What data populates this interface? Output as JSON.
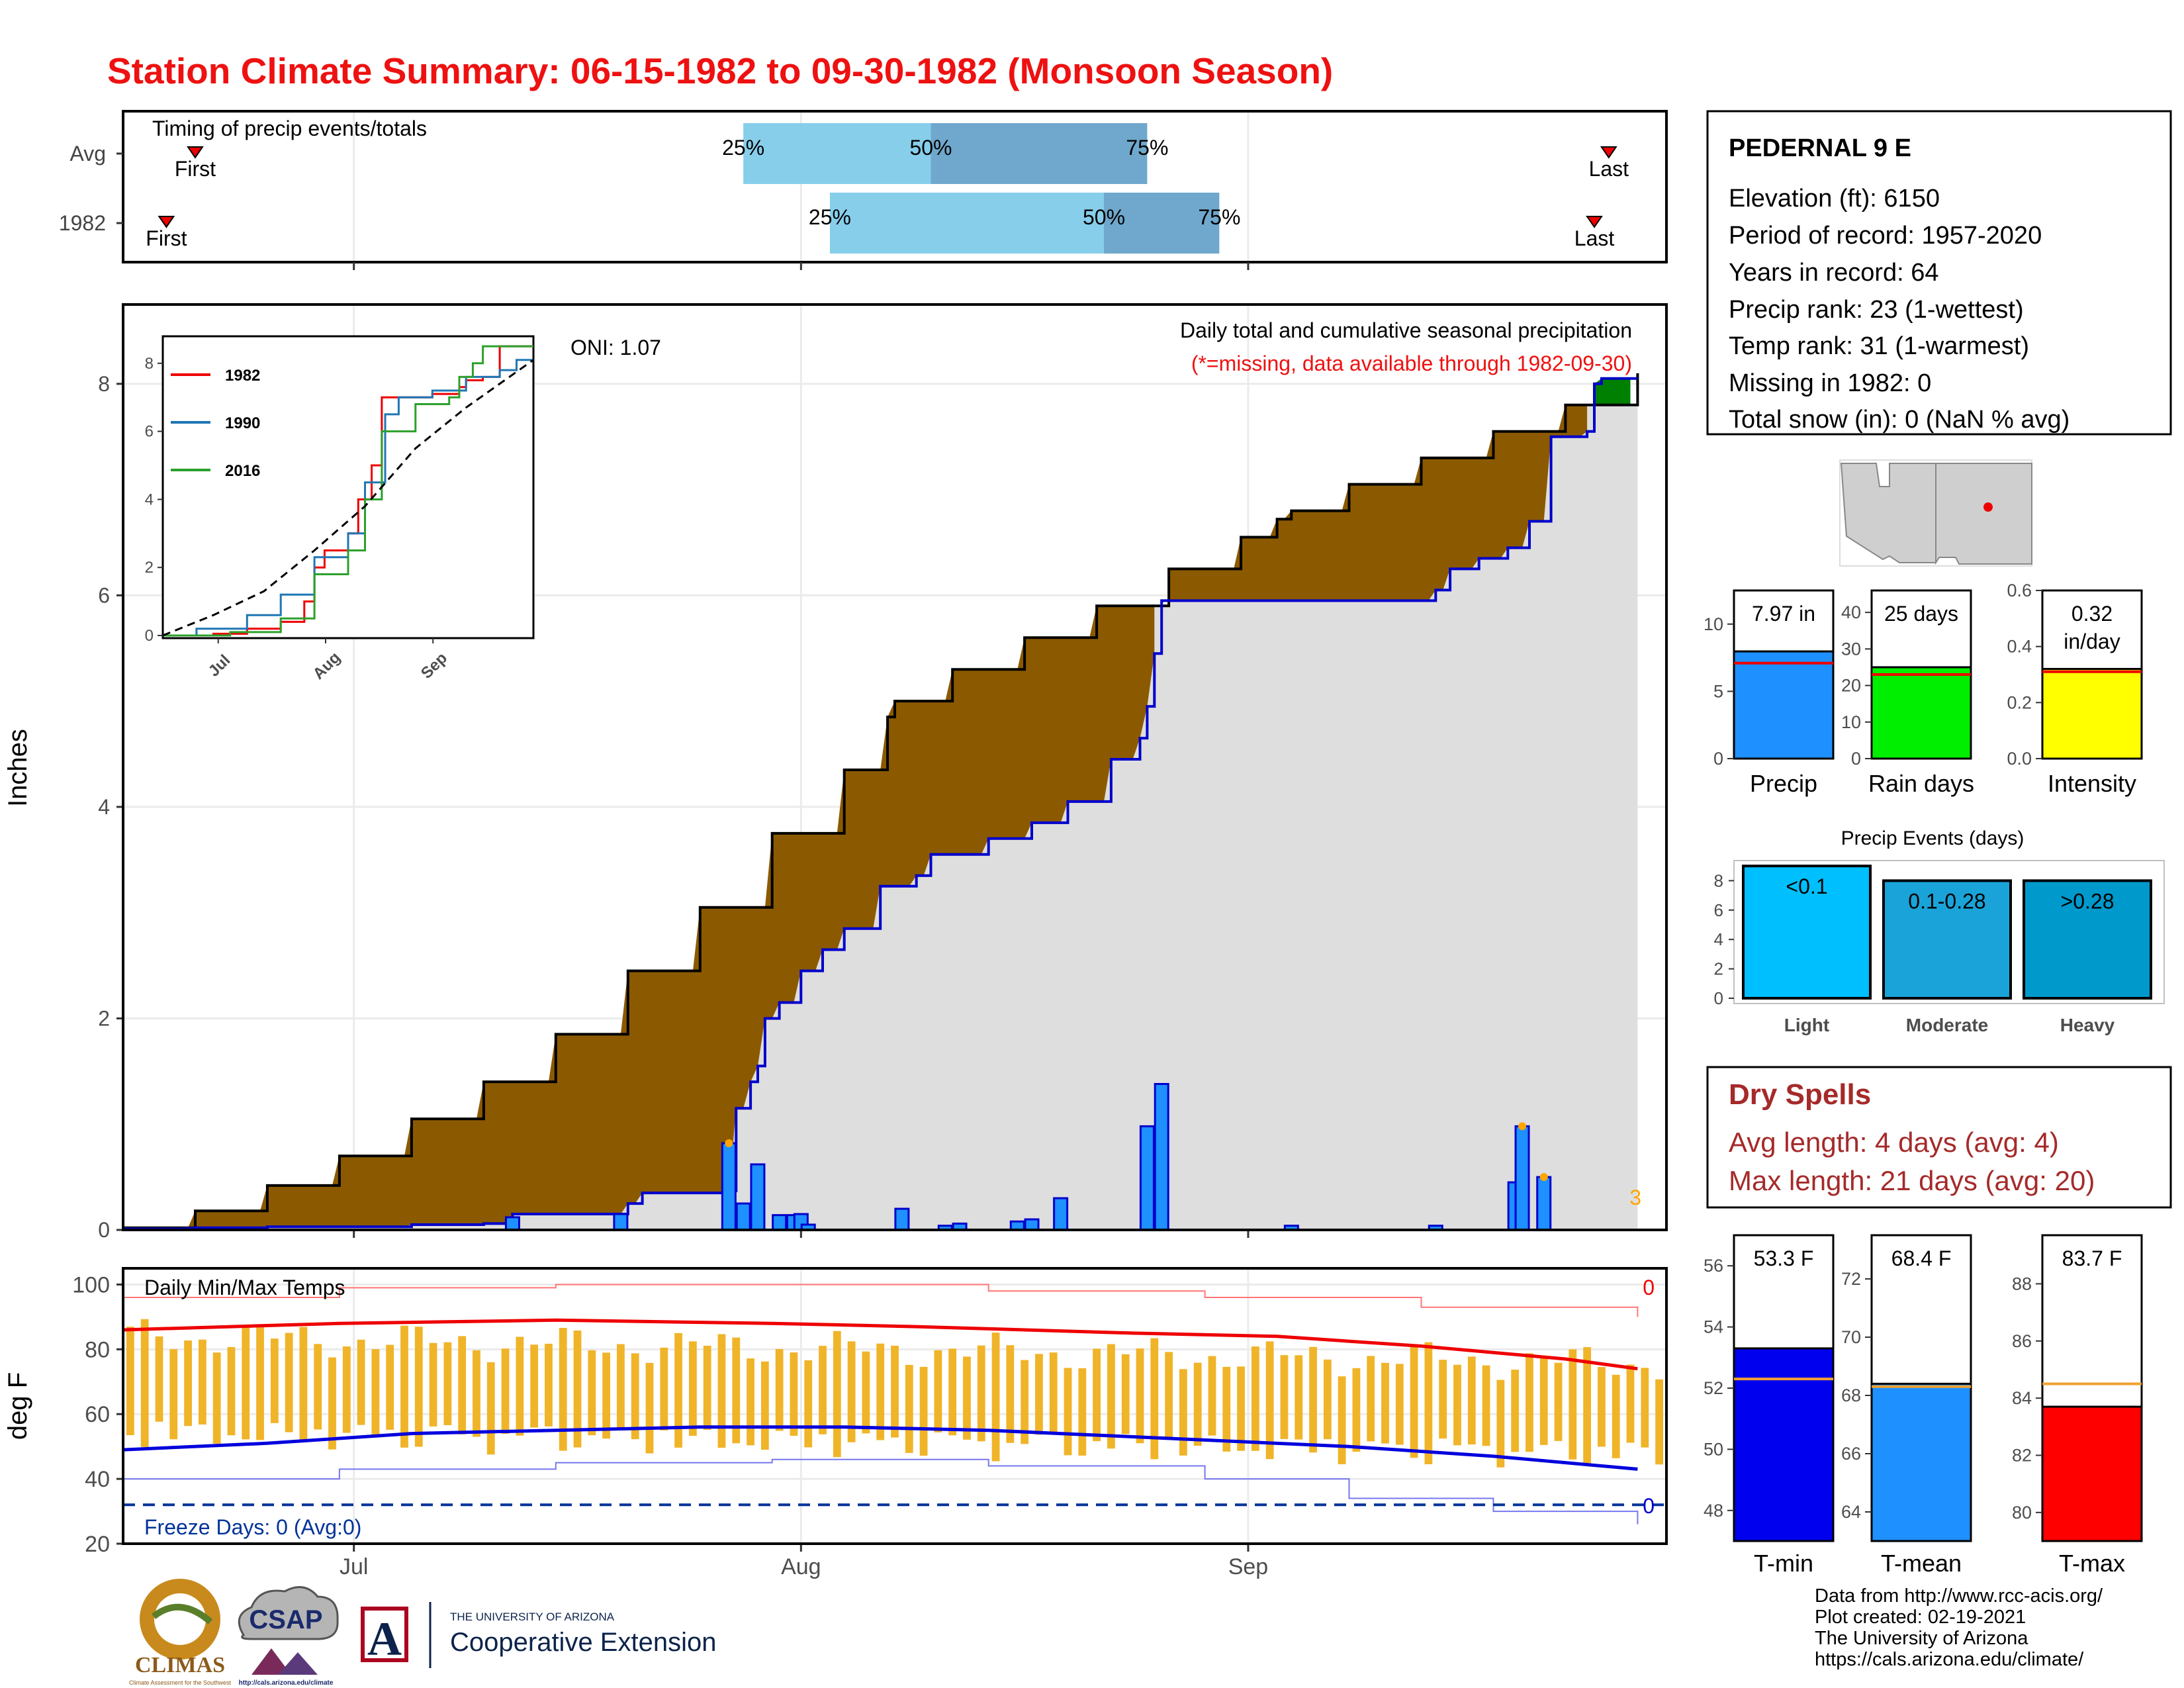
{
  "header": {
    "title": "Station Climate Summary: 06-15-1982 to 09-30-1982 (Monsoon Season)",
    "title_color": "#ee1111"
  },
  "colors": {
    "avg_cum_fill": "#dedede",
    "deficit_fill": "#8b5a00",
    "surplus_fill": "#008000",
    "obs_line": "#0000cc",
    "daily_bar": "#1e90ff",
    "temp_bar": "#f0b429",
    "tmax_line": "#ee0000",
    "tmin_line": "#0000dd",
    "quartile_light": "#87ceeb",
    "quartile_dark": "#6fa8cc"
  },
  "chart_data": [
    {
      "id": "timing",
      "type": "bar",
      "title": "Timing of precip events/totals",
      "categories": [
        "Avg",
        "1982"
      ],
      "x_axis_ticks": [
        "Jul",
        "Aug",
        "Sep"
      ],
      "rows": [
        {
          "name": "Avg",
          "first": "06-20",
          "q25": "07-28",
          "q50": "08-10",
          "q75": "08-25",
          "last": "09-26",
          "labels": [
            "First",
            "25%",
            "50%",
            "75%",
            "Last"
          ]
        },
        {
          "name": "1982",
          "first": "06-18",
          "q25": "08-03",
          "q50": "08-22",
          "q75": "08-30",
          "last": "09-25",
          "labels": [
            "First",
            "25%",
            "50%",
            "75%",
            "Last"
          ]
        }
      ]
    },
    {
      "id": "precip",
      "type": "area",
      "title": "Daily total and cumulative seasonal precipitation",
      "subtitle": "(*=missing, data available through 1982-09-30)",
      "annotation": "ONI: 1.07",
      "ylabel": "Inches",
      "ylim": [
        0,
        8.75
      ],
      "yticks": [
        0,
        2,
        4,
        6,
        8
      ],
      "x_ticks": [
        "Jul",
        "Aug",
        "Sep"
      ],
      "corner_count": "3",
      "avg_cumulative_points": [
        [
          0,
          0.02
        ],
        [
          10,
          0.18
        ],
        [
          20,
          0.42
        ],
        [
          30,
          0.7
        ],
        [
          40,
          1.05
        ],
        [
          50,
          1.4
        ],
        [
          60,
          1.85
        ],
        [
          70,
          2.45
        ],
        [
          80,
          3.05
        ],
        [
          90,
          3.75
        ],
        [
          100,
          4.35
        ],
        [
          106,
          4.85
        ],
        [
          107,
          5.0
        ],
        [
          115,
          5.3
        ],
        [
          125,
          5.6
        ],
        [
          135,
          5.9
        ],
        [
          145,
          6.25
        ],
        [
          155,
          6.55
        ],
        [
          160,
          6.72
        ],
        [
          162,
          6.8
        ],
        [
          170,
          7.05
        ],
        [
          180,
          7.3
        ],
        [
          190,
          7.55
        ],
        [
          200,
          7.8
        ],
        [
          210,
          8.1
        ]
      ],
      "obs_cumulative_points": [
        [
          0,
          0.01
        ],
        [
          10,
          0.02
        ],
        [
          20,
          0.03
        ],
        [
          40,
          0.05
        ],
        [
          50,
          0.06
        ],
        [
          54,
          0.15
        ],
        [
          70,
          0.25
        ],
        [
          72,
          0.35
        ],
        [
          84,
          0.37
        ],
        [
          85,
          1.15
        ],
        [
          87,
          1.4
        ],
        [
          88,
          1.55
        ],
        [
          89,
          2.0
        ],
        [
          91,
          2.15
        ],
        [
          94,
          2.45
        ],
        [
          97,
          2.65
        ],
        [
          100,
          2.85
        ],
        [
          105,
          3.25
        ],
        [
          110,
          3.35
        ],
        [
          112,
          3.55
        ],
        [
          120,
          3.7
        ],
        [
          126,
          3.85
        ],
        [
          131,
          4.05
        ],
        [
          137,
          4.45
        ],
        [
          141,
          4.65
        ],
        [
          142,
          4.95
        ],
        [
          143,
          5.45
        ],
        [
          144,
          5.95
        ],
        [
          150,
          5.95
        ],
        [
          170,
          5.95
        ],
        [
          182,
          6.05
        ],
        [
          184,
          6.25
        ],
        [
          188,
          6.35
        ],
        [
          192,
          6.45
        ],
        [
          195,
          6.7
        ],
        [
          198,
          7.5
        ],
        [
          203,
          7.55
        ],
        [
          204,
          8.0
        ],
        [
          205,
          8.05
        ],
        [
          210,
          8.05
        ]
      ],
      "daily_bars": [
        [
          10,
          0.02
        ],
        [
          54,
          0.12
        ],
        [
          69,
          0.15
        ],
        [
          84,
          0.82
        ],
        [
          86,
          0.25
        ],
        [
          88,
          0.62
        ],
        [
          91,
          0.14
        ],
        [
          93,
          0.14
        ],
        [
          94,
          0.15
        ],
        [
          95,
          0.05
        ],
        [
          108,
          0.2
        ],
        [
          114,
          0.04
        ],
        [
          116,
          0.06
        ],
        [
          124,
          0.08
        ],
        [
          126,
          0.1
        ],
        [
          130,
          0.3
        ],
        [
          142,
          0.98
        ],
        [
          144,
          1.38
        ],
        [
          162,
          0.04
        ],
        [
          182,
          0.04
        ],
        [
          193,
          0.45
        ],
        [
          194,
          0.98
        ],
        [
          197,
          0.5
        ]
      ],
      "inset": {
        "type": "line",
        "yticks": [
          0,
          2,
          4,
          6,
          8
        ],
        "x_ticks": [
          "Jul",
          "Aug",
          "Sep"
        ],
        "series": [
          {
            "name": "1982",
            "color": "#ee0000",
            "points": [
              [
                0,
                0
              ],
              [
                15,
                0.05
              ],
              [
                25,
                0.2
              ],
              [
                35,
                0.4
              ],
              [
                42,
                1.0
              ],
              [
                45,
                2.0
              ],
              [
                48,
                2.5
              ],
              [
                55,
                3.0
              ],
              [
                58,
                4.0
              ],
              [
                62,
                5.0
              ],
              [
                65,
                7.0
              ],
              [
                70,
                7.0
              ],
              [
                80,
                7.1
              ],
              [
                88,
                7.3
              ],
              [
                90,
                7.5
              ],
              [
                95,
                7.6
              ],
              [
                100,
                8.5
              ],
              [
                110,
                8.5
              ]
            ]
          },
          {
            "name": "1990",
            "color": "#1f77b4",
            "points": [
              [
                0,
                0
              ],
              [
                10,
                0.2
              ],
              [
                25,
                0.6
              ],
              [
                35,
                1.2
              ],
              [
                45,
                2.3
              ],
              [
                55,
                3.0
              ],
              [
                60,
                4.5
              ],
              [
                66,
                6.5
              ],
              [
                70,
                7.0
              ],
              [
                80,
                7.2
              ],
              [
                90,
                7.6
              ],
              [
                100,
                7.8
              ],
              [
                105,
                8.1
              ],
              [
                110,
                8.1
              ]
            ]
          },
          {
            "name": "2016",
            "color": "#2ca02c",
            "points": [
              [
                0,
                0
              ],
              [
                20,
                0.1
              ],
              [
                35,
                0.5
              ],
              [
                45,
                1.8
              ],
              [
                55,
                2.5
              ],
              [
                60,
                4.0
              ],
              [
                65,
                6.0
              ],
              [
                75,
                6.8
              ],
              [
                85,
                7.0
              ],
              [
                88,
                7.6
              ],
              [
                92,
                8.0
              ],
              [
                95,
                8.5
              ],
              [
                110,
                8.5
              ]
            ]
          }
        ],
        "avg_points": [
          [
            0,
            0
          ],
          [
            15,
            0.6
          ],
          [
            30,
            1.3
          ],
          [
            45,
            2.5
          ],
          [
            60,
            3.8
          ],
          [
            75,
            5.5
          ],
          [
            90,
            6.7
          ],
          [
            110,
            8.1
          ]
        ]
      }
    },
    {
      "id": "temps",
      "type": "bar",
      "title": "Daily Min/Max Temps",
      "ylabel": "deg F",
      "ylim": [
        20,
        105
      ],
      "yticks": [
        20,
        40,
        60,
        80,
        100
      ],
      "x_ticks": [
        "Jul",
        "Aug",
        "Sep"
      ],
      "freeze_label": "Freeze Days: 0 (Avg:0)",
      "freeze_line": 32,
      "top_count": "0",
      "bottom_count": "0",
      "tmax_avg_points": [
        [
          0,
          86
        ],
        [
          30,
          88
        ],
        [
          60,
          89
        ],
        [
          90,
          88
        ],
        [
          110,
          87
        ],
        [
          140,
          85
        ],
        [
          160,
          84
        ],
        [
          180,
          81
        ],
        [
          200,
          77
        ],
        [
          210,
          74
        ]
      ],
      "tmin_avg_points": [
        [
          0,
          49
        ],
        [
          20,
          51
        ],
        [
          40,
          54
        ],
        [
          60,
          55
        ],
        [
          80,
          56
        ],
        [
          100,
          56
        ],
        [
          120,
          55
        ],
        [
          150,
          52
        ],
        [
          170,
          50
        ],
        [
          190,
          47
        ],
        [
          210,
          43
        ]
      ],
      "tmax_record_points": [
        [
          0,
          96
        ],
        [
          30,
          99
        ],
        [
          60,
          100
        ],
        [
          90,
          100
        ],
        [
          120,
          98
        ],
        [
          150,
          96
        ],
        [
          180,
          93
        ],
        [
          210,
          90
        ]
      ],
      "tmin_record_points": [
        [
          0,
          40
        ],
        [
          30,
          43
        ],
        [
          60,
          45
        ],
        [
          90,
          46
        ],
        [
          120,
          44
        ],
        [
          150,
          40
        ],
        [
          170,
          34
        ],
        [
          190,
          30
        ],
        [
          210,
          26
        ]
      ]
    },
    {
      "id": "anomaly-precip",
      "type": "bar",
      "categories": [
        "Precip",
        "Rain days",
        "Intensity"
      ],
      "panels": [
        {
          "name": "Precip",
          "value": 7.97,
          "avg": 7.1,
          "ylim": [
            0,
            12.5
          ],
          "yticks": [
            0,
            5,
            10
          ],
          "label": "7.97 in",
          "color": "#1e90ff"
        },
        {
          "name": "Rain days",
          "value": 25,
          "avg": 23,
          "ylim": [
            0,
            46
          ],
          "yticks": [
            0,
            10,
            20,
            30,
            40
          ],
          "label": "25 days",
          "color": "#00ee00"
        },
        {
          "name": "Intensity",
          "value": 0.32,
          "avg": 0.31,
          "ylim": [
            0,
            0.6
          ],
          "yticks": [
            "0.0",
            "0.2",
            "0.4",
            "0.6"
          ],
          "label": "0.32 in/day",
          "color": "#ffff00"
        }
      ]
    },
    {
      "id": "precip-events",
      "type": "bar",
      "title": "Precip Events (days)",
      "categories": [
        "Light",
        "Moderate",
        "Heavy"
      ],
      "values": [
        9,
        8,
        8
      ],
      "bar_labels": [
        "<0.1",
        "0.1-0.28",
        ">0.28"
      ],
      "yticks": [
        0,
        2,
        4,
        6,
        8
      ],
      "colors": [
        "#00bfff",
        "#1aa3d9",
        "#0099cc"
      ]
    },
    {
      "id": "temp-bars",
      "type": "bar",
      "categories": [
        "T-min",
        "T-mean",
        "T-max"
      ],
      "panels": [
        {
          "name": "T-min",
          "value": 53.3,
          "avg": 52.3,
          "ylim": [
            47,
            57
          ],
          "yticks": [
            48,
            50,
            52,
            54,
            56
          ],
          "label": "53.3 F",
          "color": "#0000ee"
        },
        {
          "name": "T-mean",
          "value": 68.4,
          "avg": 68.3,
          "ylim": [
            63,
            73.5
          ],
          "yticks": [
            64,
            66,
            68,
            70,
            72
          ],
          "label": "68.4 F",
          "color": "#1e90ff"
        },
        {
          "name": "T-max",
          "value": 83.7,
          "avg": 84.5,
          "ylim": [
            79,
            89.7
          ],
          "yticks": [
            80,
            82,
            84,
            86,
            88
          ],
          "label": "83.7 F",
          "color": "#ff0000"
        }
      ]
    }
  ],
  "station": {
    "name": "PEDERNAL 9 E",
    "lines": [
      "Elevation (ft): 6150",
      "Period of record: 1957-2020",
      "Years in record: 64",
      "Precip rank: 23 (1-wettest)",
      "Temp rank: 31 (1-warmest)",
      "Missing in 1982: 0",
      "Total snow (in): 0 (NaN % avg)"
    ]
  },
  "dry_spells": {
    "title": "Dry Spells",
    "avg": "Avg length: 4 days (avg: 4)",
    "max": "Max length: 21 days (avg: 20)",
    "color": "#a52a2a"
  },
  "footer": {
    "credits": [
      "Data from http://www.rcc-acis.org/",
      "Plot created: 02-19-2021",
      "The University of Arizona",
      "https://cals.arizona.edu/climate/"
    ],
    "logo_climas": "CLIMAS",
    "logo_climas_sub": "Climate Assessment for the Southwest",
    "logo_csap": "CSAP",
    "logo_csap_url": "http://cals.arizona.edu/climate",
    "logo_ua_letter": "A",
    "logo_ua_line1": "THE UNIVERSITY OF ARIZONA",
    "logo_ua_line2": "Cooperative Extension"
  },
  "icons": {
    "map": "state-map-icon",
    "marker": "station-marker-icon"
  }
}
